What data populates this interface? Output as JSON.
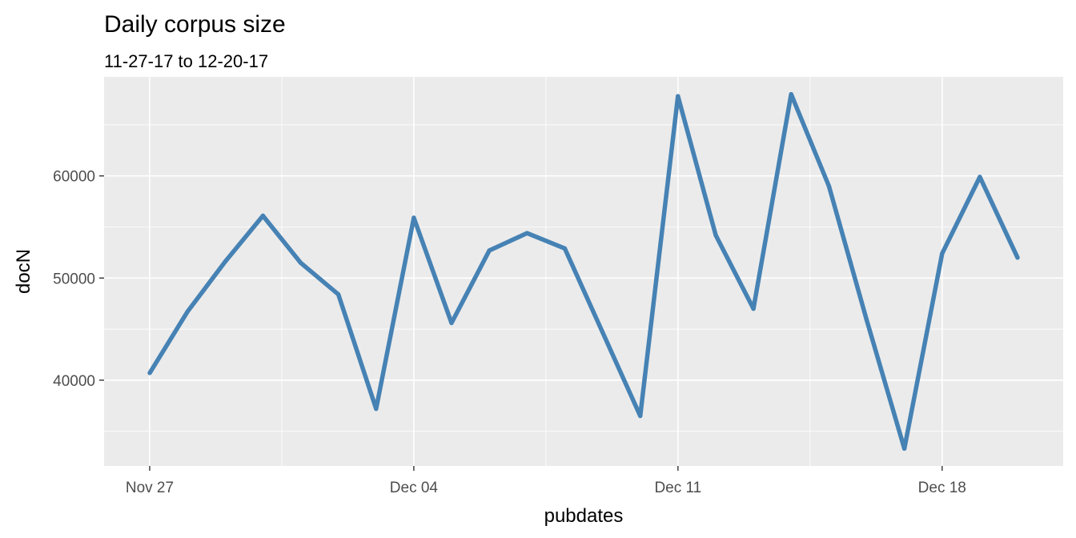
{
  "chart_data": {
    "type": "line",
    "title": "Daily corpus size",
    "subtitle": "11-27-17 to 12-20-17",
    "xlabel": "pubdates",
    "ylabel": "docN",
    "x_type": "date",
    "x": [
      "2017-11-27",
      "2017-11-28",
      "2017-11-29",
      "2017-11-30",
      "2017-12-01",
      "2017-12-02",
      "2017-12-03",
      "2017-12-04",
      "2017-12-05",
      "2017-12-06",
      "2017-12-07",
      "2017-12-08",
      "2017-12-09",
      "2017-12-10",
      "2017-12-11",
      "2017-12-12",
      "2017-12-13",
      "2017-12-14",
      "2017-12-15",
      "2017-12-16",
      "2017-12-17",
      "2017-12-18",
      "2017-12-19",
      "2017-12-20"
    ],
    "series": [
      {
        "values": [
          40700,
          46700,
          51600,
          56100,
          51500,
          48400,
          37200,
          55900,
          45600,
          52700,
          54400,
          52900,
          44700,
          36500,
          67800,
          54200,
          47000,
          68000,
          59000,
          45900,
          33300,
          52400,
          59900,
          52000
        ],
        "color": "#4682b4"
      }
    ],
    "xlim": [
      "2017-11-25T19:00",
      "2017-12-21T05:00"
    ],
    "ylim": [
      31600,
      69700
    ],
    "x_ticks": [
      {
        "date": "2017-11-27",
        "label": "Nov 27"
      },
      {
        "date": "2017-12-04",
        "label": "Dec 04"
      },
      {
        "date": "2017-12-11",
        "label": "Dec 11"
      },
      {
        "date": "2017-12-18",
        "label": "Dec 18"
      }
    ],
    "x_minor_ticks": [
      "2017-11-30T12:00",
      "2017-12-07T12:00",
      "2017-12-14T12:00"
    ],
    "y_ticks": [
      40000,
      50000,
      60000
    ],
    "y_tick_labels": [
      "40000",
      "50000",
      "60000"
    ],
    "y_minor_ticks": [
      35000,
      45000,
      55000,
      65000
    ],
    "grid": true,
    "panel_background": "#ebebeb"
  }
}
